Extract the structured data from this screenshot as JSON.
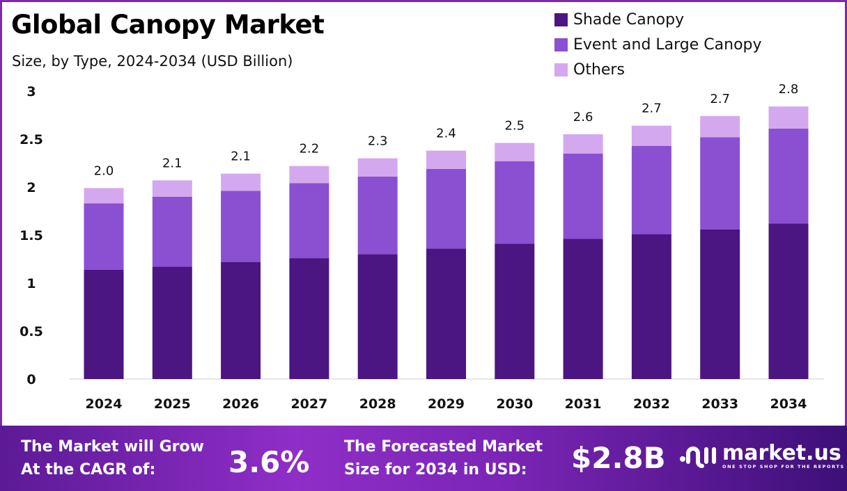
{
  "chart_data": {
    "type": "bar",
    "stacked": true,
    "title": "Global Canopy Market",
    "subtitle": "Size, by Type, 2024-2034 (USD Billion)",
    "categories": [
      "2024",
      "2025",
      "2026",
      "2027",
      "2028",
      "2029",
      "2030",
      "2031",
      "2032",
      "2033",
      "2034"
    ],
    "series": [
      {
        "name": "Shade Canopy",
        "color": "#4b1582",
        "values": [
          1.14,
          1.17,
          1.22,
          1.26,
          1.3,
          1.36,
          1.41,
          1.46,
          1.51,
          1.56,
          1.62
        ]
      },
      {
        "name": "Event and Large Canopy",
        "color": "#8b4fd1",
        "values": [
          0.69,
          0.73,
          0.74,
          0.78,
          0.81,
          0.83,
          0.86,
          0.89,
          0.92,
          0.96,
          0.99
        ]
      },
      {
        "name": "Others",
        "color": "#d4a8ee",
        "values": [
          0.16,
          0.17,
          0.18,
          0.18,
          0.19,
          0.19,
          0.19,
          0.2,
          0.21,
          0.22,
          0.23
        ]
      }
    ],
    "totals_labels": [
      "2.0",
      "2.1",
      "2.1",
      "2.2",
      "2.3",
      "2.4",
      "2.5",
      "2.6",
      "2.7",
      "2.7",
      "2.8"
    ],
    "yticks": [
      "0",
      "0.5",
      "1",
      "1.5",
      "2",
      "2.5",
      "3"
    ],
    "ylim": [
      0,
      3
    ],
    "grid": false,
    "legend": "top-right",
    "xlabel": "",
    "ylabel": ""
  },
  "footer": {
    "cagr_label_1": "The Market will Grow",
    "cagr_label_2": "At the CAGR of:",
    "cagr_value": "3.6%",
    "forecast_label_1": "The Forecasted Market",
    "forecast_label_2": "Size for 2034 in USD:",
    "forecast_value": "$2.8B",
    "brand": "market.us",
    "tagline": "ONE STOP SHOP FOR THE REPORTS"
  }
}
